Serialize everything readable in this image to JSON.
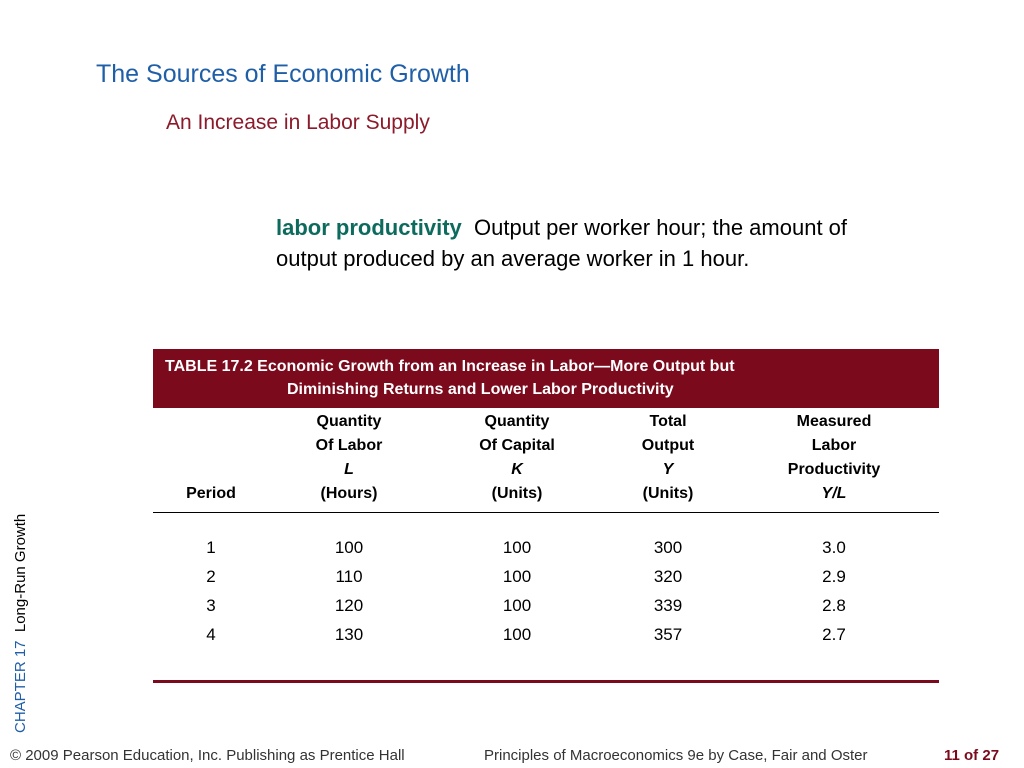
{
  "slide": {
    "title": "The Sources of Economic Growth",
    "subtitle": "An Increase in Labor Supply"
  },
  "definition": {
    "term": "labor productivity",
    "text": "Output per worker hour; the amount of output produced by an average worker in 1 hour."
  },
  "side_label": {
    "chapter": "CHAPTER 17",
    "topic": "Long-Run Growth"
  },
  "table": {
    "title_line1": "TABLE 17.2  Economic Growth from an Increase in Labor—More Output but",
    "title_line2": "Diminishing Returns and Lower Labor Productivity",
    "columns": [
      {
        "lines": [
          "Period"
        ],
        "italic_line": null
      },
      {
        "lines": [
          "Quantity",
          "Of Labor",
          "L",
          "(Hours)"
        ],
        "italic_index": 2
      },
      {
        "lines": [
          "Quantity",
          "Of Capital",
          "K",
          "(Units)"
        ],
        "italic_index": 2
      },
      {
        "lines": [
          "Total",
          "Output",
          "Y",
          "(Units)"
        ],
        "italic_index": 2
      },
      {
        "lines": [
          "Measured",
          "Labor",
          "Productivity",
          "Y/L"
        ],
        "italic_index": 3
      }
    ],
    "rows": [
      [
        "1",
        "100",
        "100",
        "300",
        "3.0"
      ],
      [
        "2",
        "110",
        "100",
        "320",
        "2.9"
      ],
      [
        "3",
        "120",
        "100",
        "339",
        "2.8"
      ],
      [
        "4",
        "130",
        "100",
        "357",
        "2.7"
      ]
    ]
  },
  "footer": {
    "copyright": "© 2009 Pearson Education, Inc. Publishing as Prentice Hall",
    "book": "Principles of Macroeconomics 9e by Case, Fair and Oster",
    "page": "11 of 27"
  }
}
